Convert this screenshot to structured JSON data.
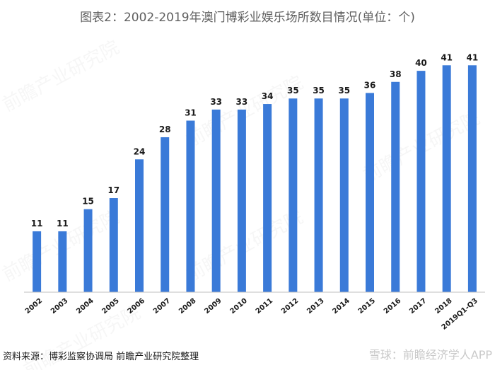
{
  "title": "图表2：2002-2019年澳门博彩业娱乐场所数目情况(单位：个)",
  "footer": {
    "source": "资料来源：博彩监察协调局 前瞻产业研究院整理",
    "brand": "雪球：前瞻经济学人APP"
  },
  "watermark": "前瞻产业研究院",
  "chart_data": {
    "type": "bar",
    "title": "图表2：2002-2019年澳门博彩业娱乐场所数目情况(单位：个)",
    "categories": [
      "2002",
      "2003",
      "2004",
      "2005",
      "2006",
      "2007",
      "2008",
      "2009",
      "2010",
      "2011",
      "2012",
      "2013",
      "2014",
      "2015",
      "2016",
      "2017",
      "2018",
      "2019Q1-Q3"
    ],
    "values": [
      11,
      11,
      15,
      17,
      24,
      28,
      31,
      33,
      33,
      34,
      35,
      35,
      35,
      36,
      38,
      40,
      41,
      41
    ],
    "ylim": [
      0,
      45
    ],
    "bar_color": "#3a7ad8",
    "grid": false,
    "legend": "none",
    "data_labels": true
  }
}
